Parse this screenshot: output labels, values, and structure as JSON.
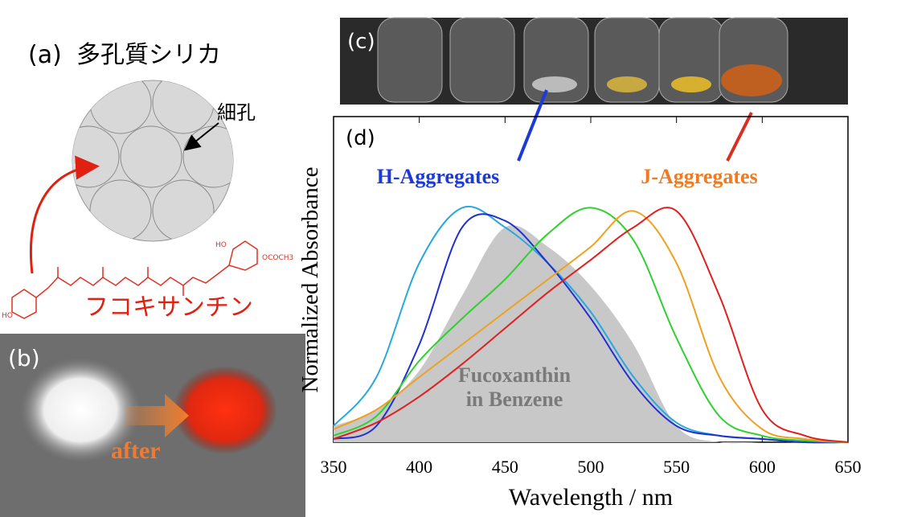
{
  "panels": {
    "a": {
      "label": "(a)",
      "title": "多孔質シリカ",
      "pore_label": "細孔",
      "molecule_name": "フコキサンチン",
      "molecule_groups": [
        "HO",
        "OCOCH3",
        "HO"
      ]
    },
    "b": {
      "label": "(b)",
      "arrow_text": "after"
    },
    "c": {
      "label": "(c)"
    }
  },
  "chart_data": {
    "type": "line",
    "panel_label": "(d)",
    "xlabel": "Wavelength / nm",
    "ylabel": "Normalized Absorbance",
    "x": [
      350,
      375,
      400,
      425,
      450,
      475,
      500,
      525,
      550,
      575,
      600,
      625,
      650
    ],
    "xlim": [
      350,
      650
    ],
    "xticks": [
      350,
      400,
      450,
      500,
      550,
      600,
      650
    ],
    "ylim": [
      0,
      1
    ],
    "series": [
      {
        "color": "#c8c8c8",
        "fill": true,
        "values": [
          0.05,
          0.1,
          0.22,
          0.45,
          0.66,
          0.6,
          0.48,
          0.3,
          0.05,
          0.0,
          0.0,
          0.0,
          0.0
        ]
      },
      {
        "color": "#29a8e0",
        "values": [
          0.05,
          0.2,
          0.55,
          0.72,
          0.66,
          0.55,
          0.4,
          0.2,
          0.06,
          0.02,
          0.01,
          0.0,
          0.0
        ]
      },
      {
        "color": "#2030d0",
        "values": [
          0.01,
          0.05,
          0.3,
          0.66,
          0.68,
          0.55,
          0.38,
          0.18,
          0.05,
          0.02,
          0.01,
          0.0,
          0.0
        ]
      },
      {
        "color": "#30d030",
        "values": [
          0.02,
          0.08,
          0.25,
          0.38,
          0.5,
          0.64,
          0.72,
          0.62,
          0.32,
          0.08,
          0.02,
          0.005,
          0.0
        ]
      },
      {
        "color": "#f0a020",
        "values": [
          0.04,
          0.1,
          0.2,
          0.3,
          0.4,
          0.5,
          0.6,
          0.71,
          0.55,
          0.2,
          0.04,
          0.01,
          0.0
        ]
      },
      {
        "color": "#e02020",
        "values": [
          0.01,
          0.06,
          0.14,
          0.24,
          0.35,
          0.46,
          0.56,
          0.66,
          0.71,
          0.45,
          0.1,
          0.02,
          0.0
        ]
      }
    ],
    "annotations": [
      {
        "text": "H-Aggregates",
        "color": "#1c3ad8"
      },
      {
        "text": "J-Aggregates",
        "color": "#f07a20"
      },
      {
        "text": [
          "Fucoxanthin",
          "in Benzene"
        ],
        "color": "#7a7a7a"
      }
    ]
  }
}
